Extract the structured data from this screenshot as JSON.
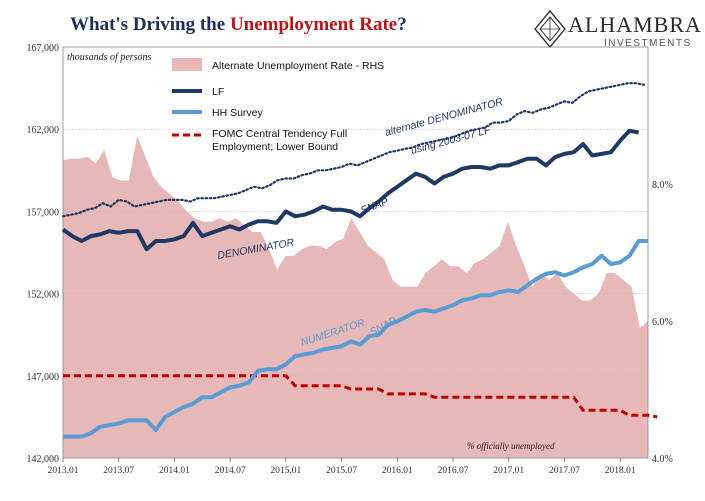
{
  "header": {
    "title_pre": "What's Driving the ",
    "title_highlight": "Unemployment Rate",
    "title_post": "?"
  },
  "logo": {
    "name": "ALHAMBRA",
    "sub": "INVESTMENTS"
  },
  "colors": {
    "lf": "#1f3864",
    "hh": "#5b9bd5",
    "fomc": "#c00000",
    "alt_fill": "#e6b8b7",
    "alt_den": "#1f3864"
  },
  "chart_data": {
    "type": "line",
    "ylabel": "thousands of persons",
    "ylabel_right": "% officially unemployed",
    "ylim": [
      142000,
      167000
    ],
    "ylim_right": [
      4.0,
      10.0
    ],
    "yticks": [
      "142,000",
      "147,000",
      "152,000",
      "157,000",
      "162,000",
      "167,000"
    ],
    "yticks_right": [
      "4.0%",
      "6.0%",
      "8.0%"
    ],
    "xticks": [
      "2013.01",
      "2013.07",
      "2014.01",
      "2014.07",
      "2015.01",
      "2015.07",
      "2016.01",
      "2016.07",
      "2017.01",
      "2017.07",
      "2018.01"
    ],
    "legend": [
      {
        "key": "alt",
        "label": "Alternate Unemployment Rate - RHS"
      },
      {
        "key": "lf",
        "label": "LF"
      },
      {
        "key": "hh",
        "label": "HH Survey"
      },
      {
        "key": "fomc",
        "label": "FOMC Central Tendency Full Employment; Lower Bound"
      }
    ],
    "annotations": {
      "alt_den_1": "alternate DENOMINATOR",
      "alt_den_2": "using 2003-07 LF",
      "snap1": "SNAP",
      "denominator": "DENOMINATOR",
      "numerator": "NUMERATOR",
      "snap2": "SNAP"
    },
    "series": [
      {
        "name": "Alternate Unemployment Rate - RHS",
        "axis": "right",
        "values": [
          8.35,
          8.37,
          8.37,
          8.4,
          8.3,
          8.5,
          8.1,
          8.05,
          8.05,
          8.7,
          8.4,
          8.1,
          7.95,
          7.85,
          7.75,
          7.6,
          7.5,
          7.45,
          7.45,
          7.5,
          7.45,
          7.5,
          7.4,
          7.3,
          7.3,
          7.05,
          6.75,
          6.95,
          6.95,
          7.05,
          7.1,
          7.1,
          7.05,
          7.15,
          7.2,
          7.5,
          7.3,
          7.1,
          7.0,
          6.9,
          6.6,
          6.5,
          6.5,
          6.5,
          6.7,
          6.8,
          6.9,
          6.8,
          6.8,
          6.7,
          6.85,
          6.9,
          7.0,
          7.1,
          7.45,
          7.1,
          6.8,
          6.5,
          6.7,
          6.6,
          6.7,
          6.5,
          6.4,
          6.3,
          6.3,
          6.4,
          6.7,
          6.7,
          6.6,
          6.5,
          5.9,
          6.0
        ]
      },
      {
        "name": "LF",
        "axis": "left",
        "values": [
          155900,
          155500,
          155200,
          155500,
          155600,
          155800,
          155700,
          155800,
          155800,
          154700,
          155200,
          155200,
          155300,
          155500,
          156300,
          155500,
          155700,
          155900,
          156100,
          155900,
          156200,
          156400,
          156400,
          156300,
          157000,
          156700,
          156800,
          157000,
          157300,
          157100,
          157100,
          157000,
          156700,
          157200,
          157600,
          158100,
          158500,
          158900,
          159300,
          159100,
          158700,
          159100,
          159300,
          159600,
          159700,
          159700,
          159600,
          159800,
          159800,
          160000,
          160200,
          160200,
          159800,
          160300,
          160500,
          160600,
          161100,
          160400,
          160500,
          160600,
          161300,
          161900,
          161800
        ]
      },
      {
        "name": "HH Survey",
        "axis": "left",
        "values": [
          143300,
          143300,
          143300,
          143500,
          143900,
          144000,
          144100,
          144300,
          144300,
          144300,
          143700,
          144500,
          144800,
          145100,
          145300,
          145700,
          145700,
          146000,
          146300,
          146400,
          146600,
          147300,
          147400,
          147400,
          147700,
          148200,
          148300,
          148400,
          148600,
          148700,
          148800,
          149100,
          148900,
          149400,
          149500,
          150100,
          150300,
          150600,
          150900,
          151000,
          150900,
          151100,
          151300,
          151600,
          151700,
          151900,
          151900,
          152100,
          152200,
          152100,
          152500,
          152900,
          153200,
          153300,
          153100,
          153300,
          153600,
          153800,
          154300,
          153800,
          153900,
          154300,
          155200,
          155200
        ]
      },
      {
        "name": "FOMC Central Tendency Full Employment; Lower Bound",
        "axis": "left",
        "values": [
          147000,
          147000,
          147000,
          147000,
          147000,
          147000,
          147000,
          147000,
          147000,
          147000,
          147000,
          147000,
          147000,
          147000,
          147000,
          147000,
          147000,
          147000,
          147000,
          147000,
          147000,
          147000,
          147000,
          147000,
          147000,
          146400,
          146400,
          146400,
          146400,
          146400,
          146400,
          146200,
          146200,
          146200,
          146200,
          145900,
          145900,
          145900,
          145900,
          145900,
          145700,
          145700,
          145700,
          145700,
          145700,
          145700,
          145700,
          145700,
          145700,
          145700,
          145700,
          145700,
          145700,
          145700,
          145700,
          145700,
          144900,
          144900,
          144900,
          144900,
          144900,
          144600,
          144600,
          144600,
          144500
        ]
      },
      {
        "name": "alternate DENOMINATOR",
        "axis": "left",
        "values": [
          156700,
          156800,
          156900,
          157100,
          157200,
          157500,
          157300,
          157700,
          157600,
          157300,
          157400,
          157500,
          157600,
          157700,
          157700,
          157700,
          157600,
          157800,
          157800,
          157800,
          157900,
          158000,
          158100,
          158300,
          158500,
          158400,
          158600,
          158900,
          159000,
          159000,
          159200,
          159300,
          159500,
          159500,
          159600,
          159700,
          159900,
          159800,
          160000,
          160200,
          160400,
          160600,
          160700,
          160800,
          160900,
          161100,
          161200,
          161300,
          161400,
          161500,
          161700,
          161900,
          162000,
          162100,
          162400,
          162400,
          162500,
          162900,
          163100,
          163000,
          163200,
          163300,
          163500,
          163700,
          163600,
          164000,
          164300,
          164400,
          164500,
          164600,
          164700,
          164800,
          164800,
          164700
        ]
      }
    ]
  }
}
